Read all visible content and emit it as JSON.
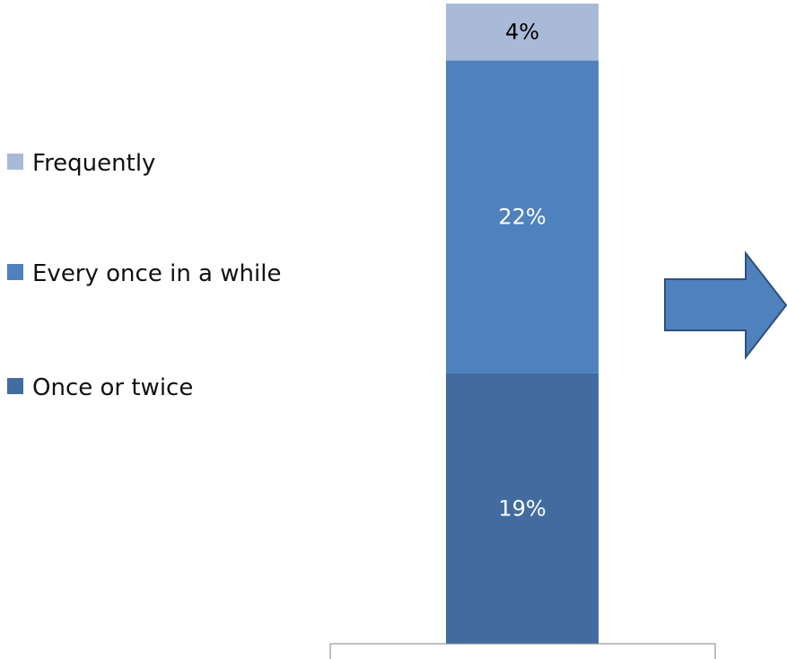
{
  "chart_data": {
    "type": "bar",
    "stacked": true,
    "categories": [
      ""
    ],
    "series": [
      {
        "name": "Once or twice",
        "values": [
          19
        ],
        "label": "19%",
        "color": "#426c9f"
      },
      {
        "name": "Every once in a while",
        "values": [
          22
        ],
        "label": "22%",
        "color": "#4f81bd"
      },
      {
        "name": "Frequently",
        "values": [
          4
        ],
        "label": "4%",
        "color": "#a9bad8"
      }
    ],
    "legend": {
      "placement": "left",
      "order": [
        "Frequently",
        "Every once in a while",
        "Once or twice"
      ]
    },
    "grid": false,
    "ylim": [
      0,
      45
    ]
  },
  "arrow": {
    "icon": "right-arrow-icon",
    "fill": "#4f81bd",
    "stroke": "#2f4f7a"
  }
}
